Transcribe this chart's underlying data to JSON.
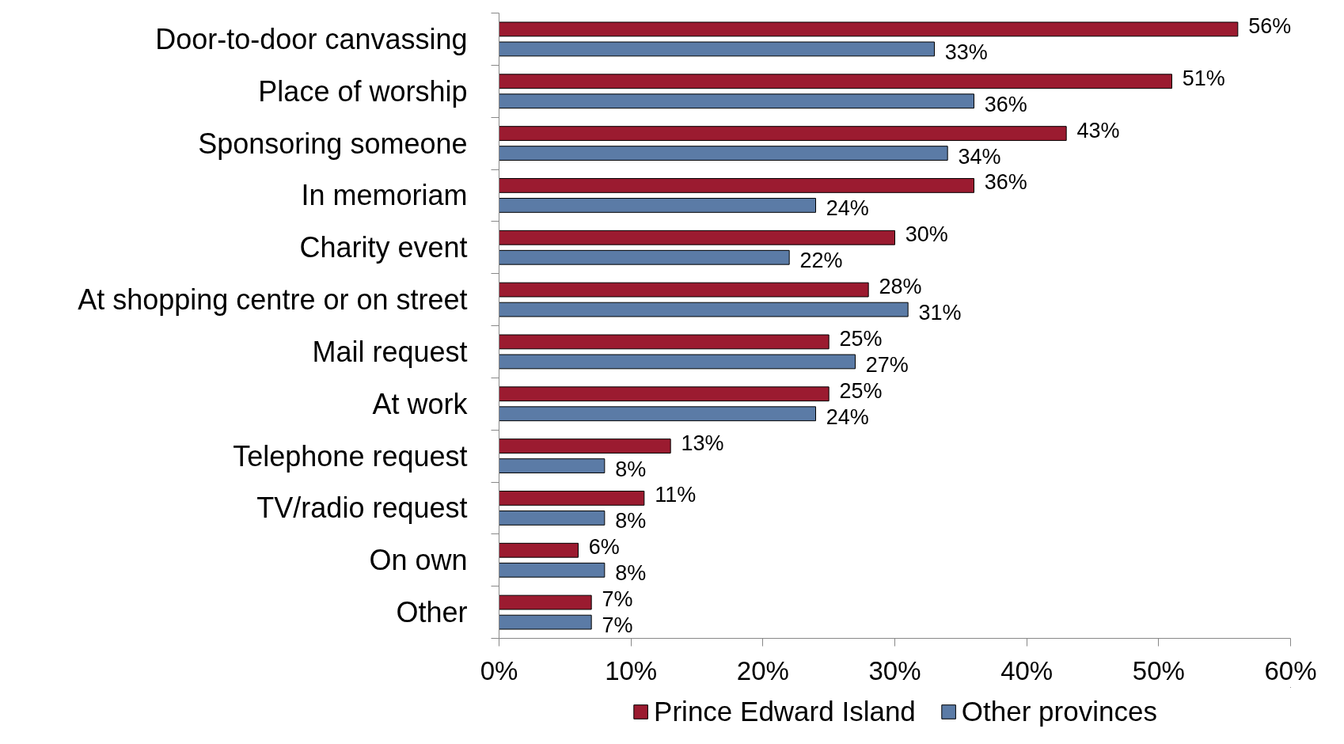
{
  "chart_data": {
    "type": "bar",
    "orientation": "horizontal",
    "categories": [
      "Door-to-door canvassing",
      "Place of worship",
      "Sponsoring someone",
      "In memoriam",
      "Charity event",
      "At shopping centre or on street",
      "Mail request",
      "At work",
      "Telephone request",
      "TV/radio request",
      "On own",
      "Other"
    ],
    "series": [
      {
        "name": "Prince Edward Island",
        "color": "#9b1b30",
        "values": [
          56,
          51,
          43,
          36,
          30,
          28,
          25,
          25,
          13,
          11,
          6,
          7
        ],
        "value_labels": [
          "56%",
          "51%",
          "43%",
          "36%",
          "30%",
          "28%",
          "25%",
          "25%",
          "13%",
          "11%",
          "6%",
          "7%"
        ]
      },
      {
        "name": "Other provinces",
        "color": "#5b7ba6",
        "values": [
          33,
          36,
          34,
          24,
          22,
          31,
          27,
          24,
          8,
          8,
          8,
          7
        ],
        "value_labels": [
          "33%",
          "36%",
          "34%",
          "24%",
          "22%",
          "31%",
          "27%",
          "24%",
          "8%",
          "8%",
          "8%",
          "7%"
        ]
      }
    ],
    "xlim": [
      0,
      60
    ],
    "xticks": [
      {
        "value": 0,
        "label": "0%"
      },
      {
        "value": 10,
        "label": "10%"
      },
      {
        "value": 20,
        "label": "20%"
      },
      {
        "value": 30,
        "label": "30%"
      },
      {
        "value": 40,
        "label": "40%"
      },
      {
        "value": 50,
        "label": "50%"
      },
      {
        "value": 60,
        "label": "60%"
      }
    ],
    "grid": false,
    "legend": "bottom"
  }
}
